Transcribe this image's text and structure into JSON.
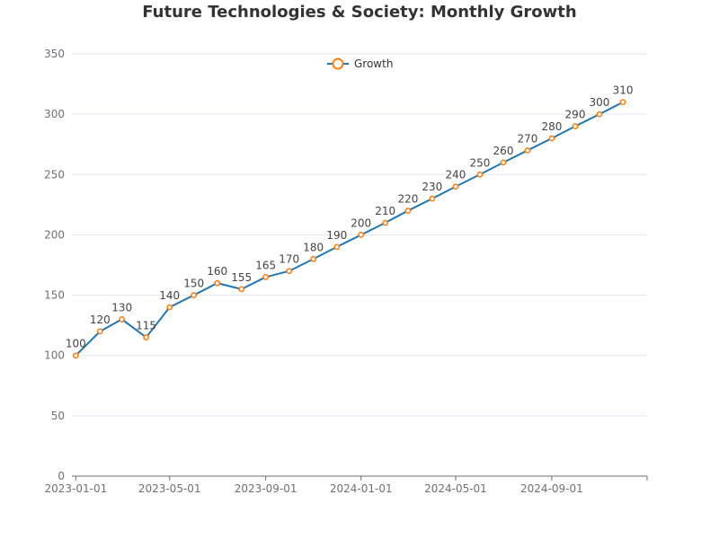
{
  "chart_data": {
    "type": "line",
    "title": "Future Technologies & Society: Monthly Growth",
    "xlabel": "",
    "ylabel": "",
    "x": [
      "2023-01-01",
      "2023-02-01",
      "2023-03-01",
      "2023-04-01",
      "2023-05-01",
      "2023-06-01",
      "2023-07-01",
      "2023-08-01",
      "2023-09-01",
      "2023-10-01",
      "2023-11-01",
      "2023-12-01",
      "2024-01-01",
      "2024-02-01",
      "2024-03-01",
      "2024-04-01",
      "2024-05-01",
      "2024-06-01",
      "2024-07-01",
      "2024-08-01",
      "2024-09-01",
      "2024-10-01",
      "2024-11-01",
      "2024-12-01"
    ],
    "xlim": [
      "2022-12-27",
      "2025-01-01"
    ],
    "x_ticks": [
      "2023-01-01",
      "2023-05-01",
      "2023-09-01",
      "2024-01-01",
      "2024-05-01",
      "2024-09-01"
    ],
    "ylim": [
      0,
      350
    ],
    "y_ticks": [
      0,
      50,
      100,
      150,
      200,
      250,
      300,
      350
    ],
    "series": [
      {
        "name": "Growth",
        "values": [
          100,
          120,
          130,
          115,
          140,
          150,
          160,
          155,
          165,
          170,
          180,
          190,
          200,
          210,
          220,
          230,
          240,
          250,
          260,
          270,
          280,
          290,
          300,
          310
        ],
        "color": "#1f77b4",
        "marker_color": "#ff7f0e"
      }
    ],
    "show_data_labels": true,
    "grid": true,
    "legend": "top-center"
  }
}
